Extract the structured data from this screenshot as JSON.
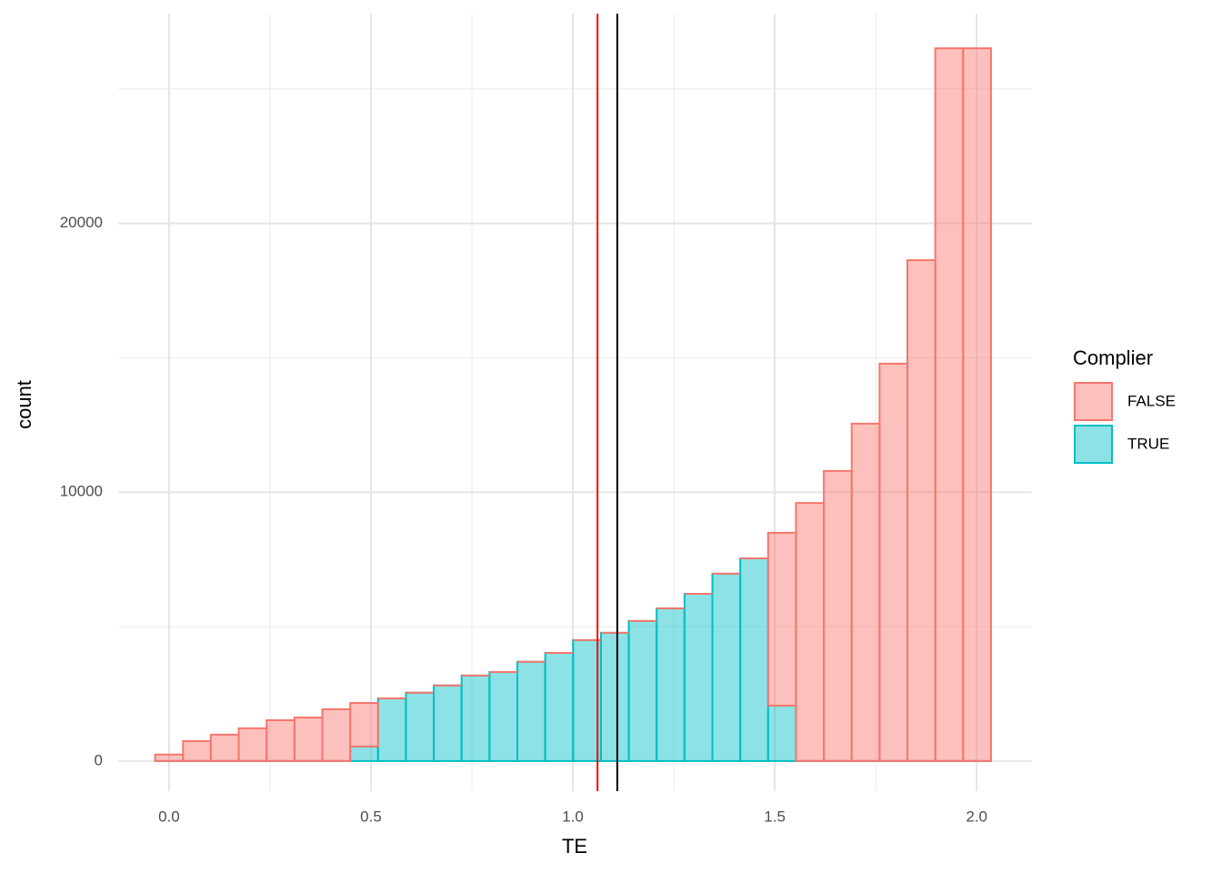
{
  "chart_data": {
    "type": "histogram",
    "x_label": "TE",
    "y_label": "count",
    "bins": [
      -0.0345,
      0.0345,
      0.1035,
      0.1725,
      0.2415,
      0.3105,
      0.3795,
      0.4485,
      0.5175,
      0.5865,
      0.6555,
      0.7245,
      0.7935,
      0.8625,
      0.9315,
      1.0005,
      1.0695,
      1.1385,
      1.2075,
      1.2765,
      1.3455,
      1.4145,
      1.4835,
      1.5525,
      1.6215,
      1.6905,
      1.7595,
      1.8285,
      1.8975,
      1.9665,
      2.0355
    ],
    "stacked": true,
    "series": [
      {
        "name": "TRUE",
        "color": "#00BFC4",
        "values": [
          0,
          0,
          0,
          0,
          0,
          0,
          0,
          540,
          2330,
          2540,
          2810,
          3180,
          3310,
          3690,
          4020,
          4500,
          4770,
          5210,
          5680,
          6220,
          6970,
          7540,
          2060,
          0,
          0,
          0,
          0,
          0,
          0,
          0
        ]
      },
      {
        "name": "FALSE",
        "color": "#F8766D",
        "values": [
          240,
          740,
          980,
          1220,
          1520,
          1620,
          1930,
          1620,
          0,
          0,
          0,
          0,
          0,
          0,
          0,
          0,
          0,
          0,
          0,
          0,
          0,
          0,
          6430,
          9600,
          10790,
          12550,
          14780,
          18630,
          26510,
          26510
        ]
      }
    ],
    "legend_title": "Complier",
    "legend_order": [
      1,
      0
    ],
    "xlim": [
      -0.126,
      2.137
    ],
    "ylim": [
      -1120,
      27800
    ],
    "xticks": [
      {
        "value": 0,
        "label": "0.0"
      },
      0.5,
      {
        "value": 1,
        "label": "1.0"
      },
      1.5,
      {
        "value": 2,
        "label": "2.0"
      }
    ],
    "yticks": [
      0,
      10000,
      20000
    ],
    "xminor": [
      0.25,
      0.75,
      1.25,
      1.75
    ],
    "yminor": [
      5000,
      15000,
      25000
    ],
    "grid": true,
    "vlines": [
      {
        "value": 1.061,
        "color": "#ff0000"
      },
      {
        "value": 1.11,
        "color": "#000000"
      }
    ]
  }
}
